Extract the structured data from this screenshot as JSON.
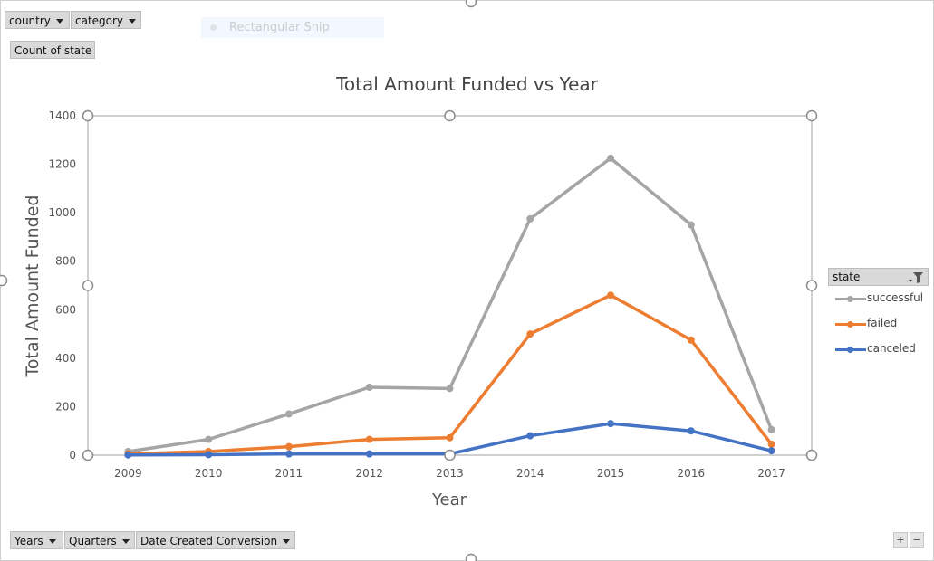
{
  "filters": {
    "top": [
      {
        "label": "country"
      },
      {
        "label": "category"
      }
    ],
    "values_label": "Count of state",
    "bottom": [
      {
        "label": "Years"
      },
      {
        "label": "Quarters"
      },
      {
        "label": "Date Created Conversion"
      }
    ]
  },
  "snip_overlay": "Rectangular Snip",
  "legend": {
    "header": "state"
  },
  "zoom": {
    "plus": "+",
    "minus": "−"
  },
  "colors": {
    "successful": "#a5a5a5",
    "failed": "#ed7d31",
    "canceled": "#4472c4"
  },
  "chart_data": {
    "type": "line",
    "title": "Total Amount Funded vs Year",
    "xlabel": "Year",
    "ylabel": "Total Amount Funded",
    "categories": [
      "2009",
      "2010",
      "2011",
      "2012",
      "2013",
      "2014",
      "2015",
      "2016",
      "2017"
    ],
    "ylim": [
      0,
      1400
    ],
    "yticks": [
      0,
      200,
      400,
      600,
      800,
      1000,
      1200,
      1400
    ],
    "grid": false,
    "legend_position": "right",
    "series": [
      {
        "name": "successful",
        "values": [
          15,
          65,
          170,
          280,
          275,
          975,
          1225,
          950,
          105
        ]
      },
      {
        "name": "failed",
        "values": [
          5,
          15,
          35,
          65,
          72,
          500,
          660,
          475,
          45
        ]
      },
      {
        "name": "canceled",
        "values": [
          1,
          2,
          5,
          5,
          5,
          80,
          130,
          100,
          18
        ]
      }
    ]
  }
}
